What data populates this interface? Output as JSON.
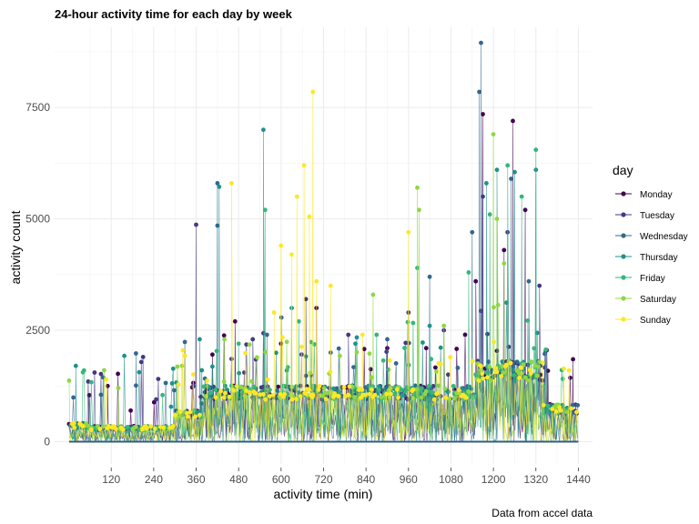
{
  "chart_data": {
    "type": "line",
    "title": "24-hour activity time for each day by week",
    "xlabel": "activity time (min)",
    "ylabel": "activity count",
    "caption": "Data from accel data",
    "xlim": [
      1,
      1440
    ],
    "ylim": [
      0,
      9000
    ],
    "x_ticks": [
      120,
      240,
      360,
      480,
      600,
      720,
      840,
      960,
      1080,
      1200,
      1320,
      1440
    ],
    "y_ticks": [
      0,
      2500,
      5000,
      7500
    ],
    "grid": true,
    "legend": {
      "title": "day",
      "position": "right",
      "entries": [
        "Monday",
        "Tuesday",
        "Wednesday",
        "Thursday",
        "Friday",
        "Saturday",
        "Sunday"
      ]
    },
    "series": [
      {
        "name": "Monday",
        "color": "#440154",
        "peaks": [
          [
            110,
            1250
          ],
          [
            1170,
            7350
          ],
          [
            1255,
            7200
          ],
          [
            1290,
            5200
          ],
          [
            1230,
            4300
          ],
          [
            700,
            3000
          ],
          [
            900,
            2100
          ],
          [
            600,
            2200
          ],
          [
            1425,
            1850
          ],
          [
            470,
            2700
          ],
          [
            1010,
            2100
          ],
          [
            1150,
            3600
          ]
        ]
      },
      {
        "name": "Tuesday",
        "color": "#443983",
        "peaks": [
          [
            360,
            4870
          ],
          [
            1170,
            5500
          ],
          [
            1240,
            4700
          ],
          [
            670,
            3200
          ],
          [
            1060,
            2500
          ],
          [
            210,
            1900
          ],
          [
            520,
            2300
          ],
          [
            1330,
            3500
          ],
          [
            960,
            2900
          ],
          [
            790,
            2400
          ]
        ]
      },
      {
        "name": "Wednesday",
        "color": "#31688E",
        "peaks": [
          [
            1165,
            8950
          ],
          [
            1160,
            7850
          ],
          [
            420,
            5800
          ],
          [
            1140,
            4700
          ],
          [
            420,
            4850
          ],
          [
            190,
            1980
          ],
          [
            1250,
            5900
          ],
          [
            1300,
            3600
          ],
          [
            900,
            2300
          ],
          [
            1020,
            3700
          ],
          [
            560,
            2400
          ],
          [
            740,
            2000
          ]
        ]
      },
      {
        "name": "Thursday",
        "color": "#21908C",
        "peaks": [
          [
            425,
            5720
          ],
          [
            550,
            7000
          ],
          [
            1210,
            6100
          ],
          [
            1260,
            6050
          ],
          [
            1180,
            5800
          ],
          [
            1320,
            6100
          ],
          [
            370,
            2300
          ],
          [
            20,
            1700
          ],
          [
            1020,
            2600
          ],
          [
            630,
            3000
          ],
          [
            810,
            2200
          ]
        ]
      },
      {
        "name": "Friday",
        "color": "#35B779",
        "peaks": [
          [
            1320,
            6550
          ],
          [
            1240,
            6200
          ],
          [
            1280,
            5500
          ],
          [
            555,
            5200
          ],
          [
            1190,
            5100
          ],
          [
            1130,
            3800
          ],
          [
            985,
            3900
          ],
          [
            650,
            2700
          ],
          [
            870,
            2400
          ],
          [
            480,
            2200
          ]
        ]
      },
      {
        "name": "Saturday",
        "color": "#8FD744",
        "peaks": [
          [
            1200,
            6900
          ],
          [
            985,
            5700
          ],
          [
            990,
            5200
          ],
          [
            1210,
            5000
          ],
          [
            1230,
            4000
          ],
          [
            1060,
            2600
          ],
          [
            860,
            3300
          ],
          [
            440,
            2300
          ],
          [
            320,
            1700
          ],
          [
            140,
            1200
          ]
        ]
      },
      {
        "name": "Sunday",
        "color": "#FDE725",
        "peaks": [
          [
            690,
            7850
          ],
          [
            460,
            5800
          ],
          [
            665,
            6200
          ],
          [
            645,
            5500
          ],
          [
            680,
            5050
          ],
          [
            600,
            4400
          ],
          [
            960,
            4700
          ],
          [
            630,
            4200
          ],
          [
            700,
            3600
          ],
          [
            740,
            3500
          ],
          [
            580,
            2900
          ],
          [
            830,
            2400
          ]
        ]
      }
    ]
  }
}
